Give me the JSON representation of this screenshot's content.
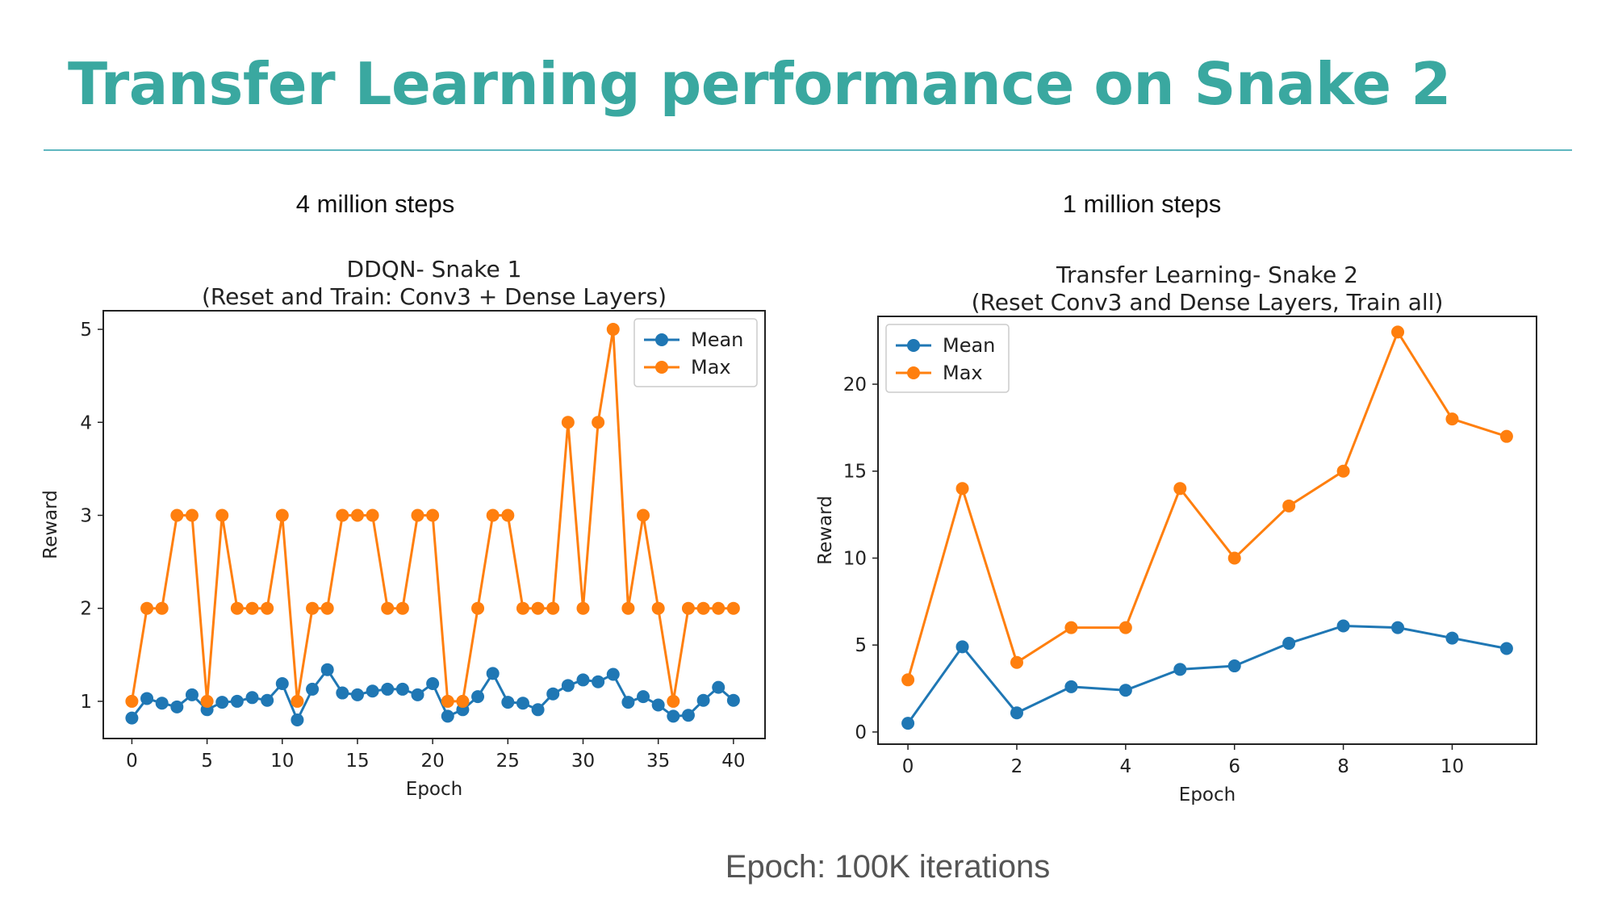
{
  "slide": {
    "title": "Transfer Learning performance on Snake 2",
    "left_caption": "4 million steps",
    "right_caption": "1 million steps",
    "footer": "Epoch: 100K iterations"
  },
  "colors": {
    "title": "#3aa8a0",
    "mean": "#1f77b4",
    "max": "#ff7f0e"
  },
  "chart_data": [
    {
      "type": "line",
      "title": "DDQN- Snake 1",
      "subtitle": "(Reset and Train: Conv3 + Dense Layers)",
      "xlabel": "Epoch",
      "ylabel": "Reward",
      "xlim": [
        -1.9,
        42.1
      ],
      "ylim": [
        0.6,
        5.2
      ],
      "xticks": [
        0,
        5,
        10,
        15,
        20,
        25,
        30,
        35,
        40
      ],
      "yticks": [
        1,
        2,
        3,
        4,
        5
      ],
      "legend": "top-right",
      "x": [
        0,
        1,
        2,
        3,
        4,
        5,
        6,
        7,
        8,
        9,
        10,
        11,
        12,
        13,
        14,
        15,
        16,
        17,
        18,
        19,
        20,
        21,
        22,
        23,
        24,
        25,
        26,
        27,
        28,
        29,
        30,
        31,
        32,
        33,
        34,
        35,
        36,
        37,
        38,
        39,
        40
      ],
      "series": [
        {
          "name": "Mean",
          "values": [
            0.82,
            1.03,
            0.98,
            0.94,
            1.07,
            0.91,
            0.99,
            1.0,
            1.04,
            1.01,
            1.19,
            0.8,
            1.13,
            1.34,
            1.09,
            1.07,
            1.11,
            1.13,
            1.13,
            1.07,
            1.19,
            0.84,
            0.91,
            1.05,
            1.3,
            0.99,
            0.98,
            0.91,
            1.08,
            1.17,
            1.23,
            1.21,
            1.29,
            0.99,
            1.05,
            0.96,
            0.84,
            0.85,
            1.01,
            1.15,
            1.01
          ]
        },
        {
          "name": "Max",
          "values": [
            1,
            2,
            2,
            3,
            3,
            1,
            3,
            2,
            2,
            2,
            3,
            1,
            2,
            2,
            3,
            3,
            3,
            2,
            2,
            3,
            3,
            1,
            1,
            2,
            3,
            3,
            2,
            2,
            2,
            4,
            2,
            4,
            5,
            2,
            3,
            2,
            1,
            2,
            2,
            2,
            2
          ]
        }
      ]
    },
    {
      "type": "line",
      "title": "Transfer Learning- Snake 2",
      "subtitle": "(Reset Conv3 and Dense Layers, Train all)",
      "xlabel": "Epoch",
      "ylabel": "Reward",
      "xlim": [
        -0.55,
        11.55
      ],
      "ylim": [
        -0.7,
        23.9
      ],
      "xticks": [
        0,
        2,
        4,
        6,
        8,
        10
      ],
      "yticks": [
        0,
        5,
        10,
        15,
        20
      ],
      "legend": "top-left",
      "x": [
        0,
        1,
        2,
        3,
        4,
        5,
        6,
        7,
        8,
        9,
        10,
        11
      ],
      "series": [
        {
          "name": "Mean",
          "values": [
            0.5,
            4.9,
            1.1,
            2.6,
            2.4,
            3.6,
            3.8,
            5.1,
            6.1,
            6.0,
            5.4,
            4.8
          ]
        },
        {
          "name": "Max",
          "values": [
            3,
            14,
            4,
            6,
            6,
            14,
            10,
            13,
            15,
            23,
            18,
            17
          ]
        }
      ]
    }
  ]
}
